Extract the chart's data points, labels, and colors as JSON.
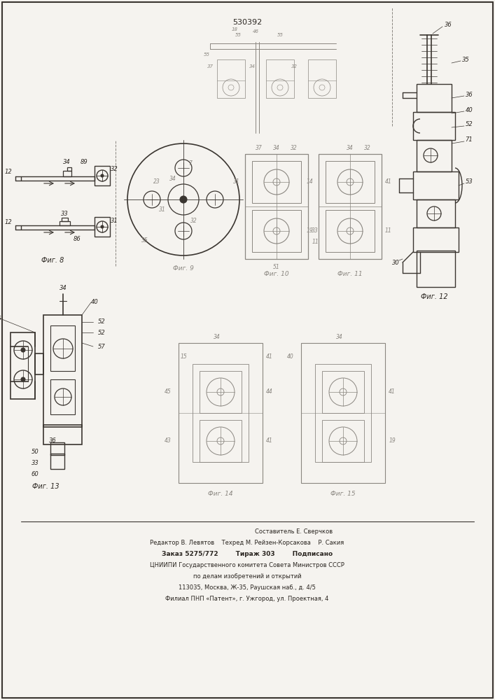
{
  "title": "530392",
  "bg_color": "#f5f3ef",
  "line_color": "#3a3530",
  "faint_color": "#8a8680",
  "text_color": "#2a2520",
  "footer_lines": [
    "Составитель Е. Сверчков",
    "Редактор В. Левятов    Техред М. Рейзен-Корсакова    Р. Сакия",
    "Заказ 5275/772        Тираж 303        Подписано",
    "ЦНИИПИ Государственного комитета Совета Министров СССР",
    "по делам изобретений и открытий",
    "113035, Москва, Ж-35, Раушская наб., д. 4/5",
    "Филиал ПНП «Патент», г. Ужгород, ул. Проектная, 4"
  ],
  "fig8_caption": "Фиг. 8",
  "fig9_caption": "Фиг. 9",
  "fig10_caption": "Фиг. 10",
  "fig11_caption": "Фиг. 11",
  "fig12_caption": "Фиг. 12",
  "fig13_caption": "Фиг. 13",
  "fig14_caption": "Фиг. 14",
  "fig15_caption": "Фиг. 15"
}
